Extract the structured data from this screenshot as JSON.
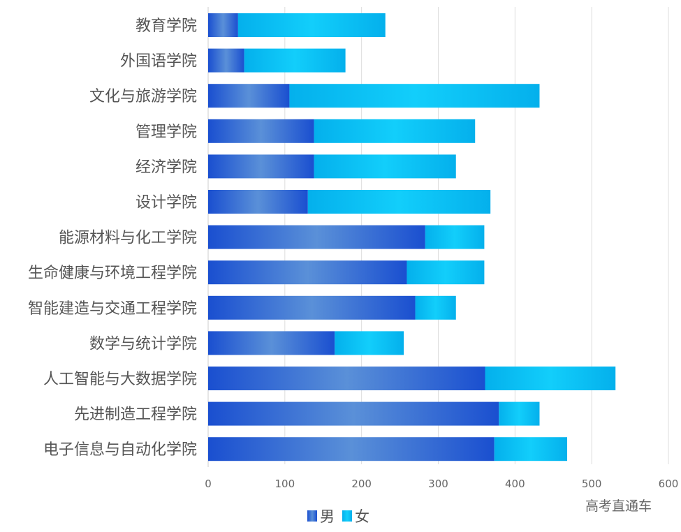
{
  "chart_data": {
    "type": "bar",
    "orientation": "horizontal",
    "stacked": true,
    "categories": [
      "教育学院",
      "外国语学院",
      "文化与旅游学院",
      "管理学院",
      "经济学院",
      "设计学院",
      "能源材料与化工学院",
      "生命健康与环境工程学院",
      "智能建造与交通工程学院",
      "数学与统计学院",
      "人工智能与大数据学院",
      "先进制造工程学院",
      "电子信息与自动化学院"
    ],
    "series": [
      {
        "name": "男",
        "color": "#1a50d0",
        "values": [
          39,
          47,
          106,
          138,
          138,
          130,
          283,
          259,
          270,
          165,
          361,
          379,
          373
        ]
      },
      {
        "name": "女",
        "color": "#0ec4f4",
        "values": [
          192,
          132,
          326,
          210,
          185,
          238,
          77,
          101,
          53,
          90,
          170,
          53,
          95
        ]
      }
    ],
    "xlim": [
      0,
      600
    ],
    "xticks": [
      "0",
      "100",
      "200",
      "300",
      "400",
      "500",
      "600"
    ],
    "grid": true,
    "legend": "bottom"
  },
  "watermark": "高考直通车"
}
